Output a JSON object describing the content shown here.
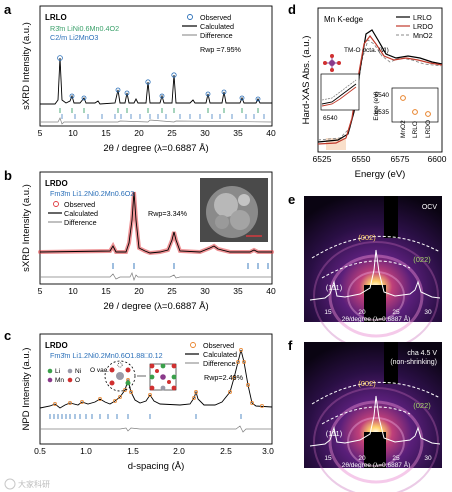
{
  "figure": {
    "panels": [
      "a",
      "b",
      "c",
      "d",
      "e",
      "f"
    ],
    "watermark": "大家科研",
    "colors": {
      "observed_blue": "#2a6fb8",
      "observed_red": "#e0393e",
      "observed_orange": "#e8822a",
      "calc": "#000000",
      "diff": "#808080",
      "r3m": "#3aa06a",
      "c2m": "#2a6fb8",
      "lrlo_line": "#000000",
      "lrdo_line": "#c0392b",
      "mno2_line": "#888888"
    }
  },
  "panel_a": {
    "sample": "LRLO",
    "phase1": "R3̄m LiNi0.6Mn0.4O2",
    "phase2": "C2/m Li2MnO3",
    "legend": [
      "Observed",
      "Calculated",
      "Difference"
    ],
    "rwp": "Rwp =7.95%",
    "xlabel": "2θ / degree (λ=0.6887 Å)",
    "ylabel": "sXRD Intensity (a.u.)",
    "xticks": [
      "5",
      "10",
      "15",
      "20",
      "25",
      "30",
      "35",
      "40"
    ]
  },
  "panel_b": {
    "sample": "LRDO",
    "phase": "Fm3̄m Li1.2Ni0.2Mn0.6O2",
    "legend": [
      "Observed",
      "Calculated",
      "Difference"
    ],
    "rwp": "Rwp=3.34%",
    "xlabel": "2θ / degree (λ=0.6887 Å)",
    "ylabel": "sXRD Intensity (a.u.)",
    "xticks": [
      "5",
      "10",
      "15",
      "20",
      "25",
      "30",
      "35",
      "40"
    ]
  },
  "panel_c": {
    "sample": "LRDO",
    "phase": "Fm3̄m Li1.2Ni0.2Mn0.6O1.88□0.12",
    "legend": [
      "Observed",
      "Calculated",
      "Difference"
    ],
    "rwp": "Rwp=2.49%",
    "vac_label": "O vac.",
    "atoms": [
      "Li",
      "Ni",
      "Mn",
      "O"
    ],
    "xlabel": "d-spacing (Å)",
    "ylabel": "NPD Intensity (a.u.)",
    "xticks": [
      "0.5",
      "1.0",
      "1.5",
      "2.0",
      "2.5",
      "3.0"
    ]
  },
  "panel_d": {
    "title": "Mn K-edge",
    "legend": [
      "LRLO",
      "LRDO",
      "MnO2"
    ],
    "annotation": "TM-O octa. (VI)",
    "inset_tick": "6540",
    "edge_ylabel": "Edge (eV)",
    "edge_yticks": [
      "6540",
      "6535"
    ],
    "edge_xticks": [
      "MnO2",
      "LRLO",
      "LRDO"
    ],
    "xlabel": "Energy (eV)",
    "ylabel": "Hard-XAS Abs. (a.u.)",
    "xticks": [
      "6525",
      "6550",
      "6575",
      "6600"
    ]
  },
  "panel_e": {
    "condition": "OCV",
    "peaks": [
      "(111)",
      "(002)",
      "(022)"
    ],
    "xlabel": "2θ/degree (λ=0.6887 Å)",
    "xticks": [
      "15",
      "20",
      "25",
      "30"
    ]
  },
  "panel_f": {
    "condition": "cha 4.5 V",
    "subcondition": "(non-shrinking)",
    "peaks": [
      "(111)",
      "(002)",
      "(022)"
    ],
    "xlabel": "2θ/degree (λ=0.6887 Å)",
    "xticks": [
      "15",
      "20",
      "25",
      "30"
    ]
  }
}
